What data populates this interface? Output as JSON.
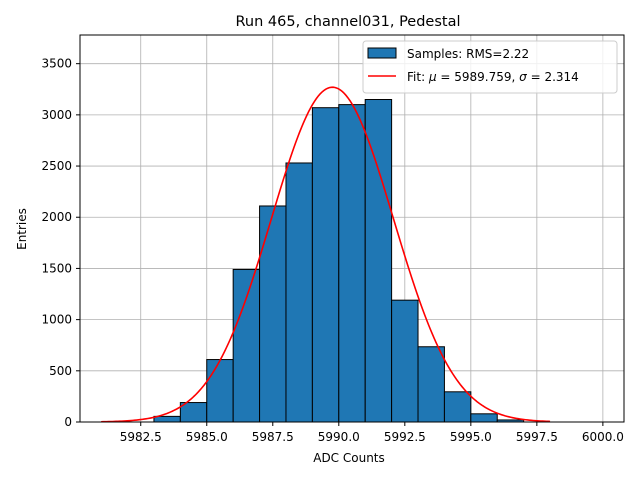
{
  "chart_data": {
    "type": "bar",
    "title": "Run 465, channel031, Pedestal",
    "xlabel": "ADC Counts",
    "ylabel": "Entries",
    "xlim": [
      5980.2,
      6000.8
    ],
    "ylim": [
      0,
      3780
    ],
    "xticks": [
      5982.5,
      5985.0,
      5987.5,
      5990.0,
      5992.5,
      5995.0,
      5997.5,
      6000.0
    ],
    "xtick_labels": [
      "5982.5",
      "5985.0",
      "5987.5",
      "5990.0",
      "5992.5",
      "5995.0",
      "5997.5",
      "6000.0"
    ],
    "yticks": [
      0,
      500,
      1000,
      1500,
      2000,
      2500,
      3000,
      3500
    ],
    "ytick_labels": [
      "0",
      "500",
      "1000",
      "1500",
      "2000",
      "2500",
      "3000",
      "3500"
    ],
    "grid": true,
    "legend_position": "top-right",
    "histogram": {
      "name": "Samples: RMS=2.22",
      "color": "#1f77b4",
      "edge_color": "#000000",
      "bin_edges": [
        5983,
        5984,
        5985,
        5986,
        5987,
        5988,
        5989,
        5990,
        5991,
        5992,
        5993,
        5994,
        5995,
        5996,
        5997
      ],
      "counts": [
        55,
        190,
        610,
        1490,
        2110,
        2530,
        3070,
        3100,
        3150,
        1190,
        735,
        295,
        80,
        20
      ]
    },
    "fit": {
      "name_text": "Fit: ",
      "mu_symbol": "μ",
      "mu_text": " = 5989.759, ",
      "sigma_symbol": "σ",
      "sigma_text": " = 2.314",
      "color": "#ff0000",
      "mu": 5989.759,
      "sigma": 2.314,
      "amplitude": 3270,
      "x_range": [
        5981,
        5998
      ]
    }
  }
}
